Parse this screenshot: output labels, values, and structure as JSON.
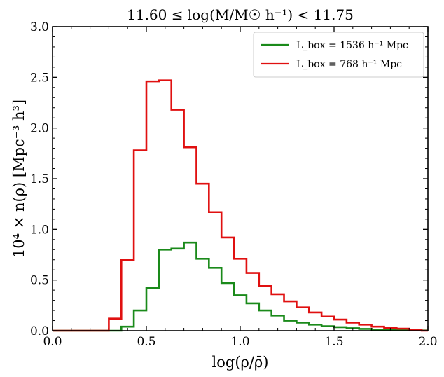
{
  "chart_data": {
    "type": "histogram-step",
    "title": "11.60 ≤ log(M/M☉ h⁻¹) < 11.75",
    "xlabel": "log(ρ/ρ̄)",
    "ylabel": "10⁴ × n(ρ) [Mpc⁻³ h³]",
    "xlim": [
      0.0,
      2.0
    ],
    "ylim": [
      0.0,
      3.0
    ],
    "x_ticks": [
      0.0,
      0.5,
      1.0,
      1.5,
      2.0
    ],
    "x_tick_labels": [
      "0.0",
      "0.5",
      "1.0",
      "1.5",
      "2.0"
    ],
    "y_ticks": [
      0.0,
      0.5,
      1.0,
      1.5,
      2.0,
      2.5,
      3.0
    ],
    "y_tick_labels": [
      "0.0",
      "0.5",
      "1.0",
      "1.5",
      "2.0",
      "2.5",
      "3.0"
    ],
    "legend_position": "top-right",
    "bin_edges": [
      0.0,
      0.0667,
      0.1333,
      0.2,
      0.2667,
      0.3,
      0.3667,
      0.4333,
      0.5,
      0.5667,
      0.6333,
      0.7,
      0.7667,
      0.8333,
      0.9,
      0.9667,
      1.0333,
      1.1,
      1.1667,
      1.2333,
      1.3,
      1.3667,
      1.4333,
      1.5,
      1.5667,
      1.6333,
      1.7,
      1.7667,
      1.8333,
      1.9,
      1.9667
    ],
    "series": [
      {
        "name": "L_box = 1536 h⁻¹ Mpc",
        "color": "#1a8a1a",
        "values": [
          0.0,
          0.0,
          0.0,
          0.0,
          0.0,
          0.0,
          0.04,
          0.2,
          0.42,
          0.8,
          0.81,
          0.87,
          0.71,
          0.62,
          0.47,
          0.35,
          0.27,
          0.2,
          0.15,
          0.1,
          0.08,
          0.06,
          0.045,
          0.035,
          0.025,
          0.018,
          0.012,
          0.008,
          0.005,
          0.003,
          0.002
        ]
      },
      {
        "name": "L_box = 768 h⁻¹ Mpc",
        "color": "#e01010",
        "values": [
          0.0,
          0.0,
          0.0,
          0.0,
          0.0,
          0.12,
          0.7,
          1.78,
          2.46,
          2.47,
          2.18,
          1.81,
          1.45,
          1.17,
          0.92,
          0.71,
          0.57,
          0.44,
          0.36,
          0.29,
          0.23,
          0.18,
          0.14,
          0.11,
          0.08,
          0.06,
          0.04,
          0.03,
          0.02,
          0.01,
          0.0
        ]
      }
    ]
  }
}
